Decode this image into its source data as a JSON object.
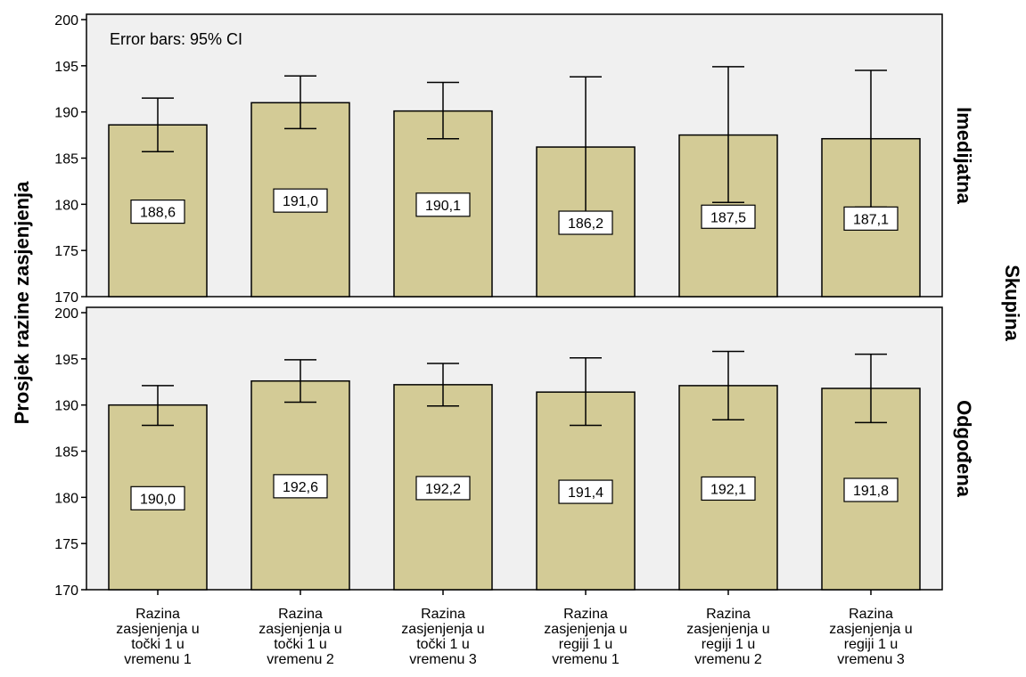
{
  "chart_data": {
    "type": "bar",
    "annotation": "Error bars: 95% CI",
    "ylabel": "Prosjek razine zasjenjenja",
    "facet_title": "Skupina",
    "ylim": [
      170,
      200
    ],
    "yticks": [
      170,
      175,
      180,
      185,
      190,
      195,
      200
    ],
    "categories": [
      [
        "Razina",
        "zasjenjenja u",
        "točki 1 u",
        "vremenu 1"
      ],
      [
        "Razina",
        "zasjenjenja u",
        "točki 1 u",
        "vremenu 2"
      ],
      [
        "Razina",
        "zasjenjenja u",
        "točki 1 u",
        "vremenu 3"
      ],
      [
        "Razina",
        "zasjenjenja u",
        "regiji 1 u",
        "vremenu 1"
      ],
      [
        "Razina",
        "zasjenjenja u",
        "regiji 1 u",
        "vremenu 2"
      ],
      [
        "Razina",
        "zasjenjenja u",
        "regiji 1 u",
        "vremenu 3"
      ]
    ],
    "bar_color": "#d3cb96",
    "panel_background": "#f0f0f0",
    "panels": [
      {
        "name": "Imedijatna",
        "values": [
          188.6,
          191.0,
          190.1,
          186.2,
          187.5,
          187.1
        ],
        "labels": [
          "188,6",
          "191,0",
          "190,1",
          "186,2",
          "187,5",
          "187,1"
        ],
        "ci_low": [
          185.7,
          188.2,
          187.1,
          178.8,
          180.2,
          179.7
        ],
        "ci_high": [
          191.5,
          193.9,
          193.2,
          193.8,
          194.9,
          194.5
        ]
      },
      {
        "name": "Odgođena",
        "values": [
          190.0,
          192.6,
          192.2,
          191.4,
          192.1,
          191.8
        ],
        "labels": [
          "190,0",
          "192,6",
          "192,2",
          "191,4",
          "192,1",
          "191,8"
        ],
        "ci_low": [
          187.8,
          190.3,
          189.9,
          187.8,
          188.4,
          188.1
        ],
        "ci_high": [
          192.1,
          194.9,
          194.5,
          195.1,
          195.8,
          195.5
        ]
      }
    ]
  }
}
